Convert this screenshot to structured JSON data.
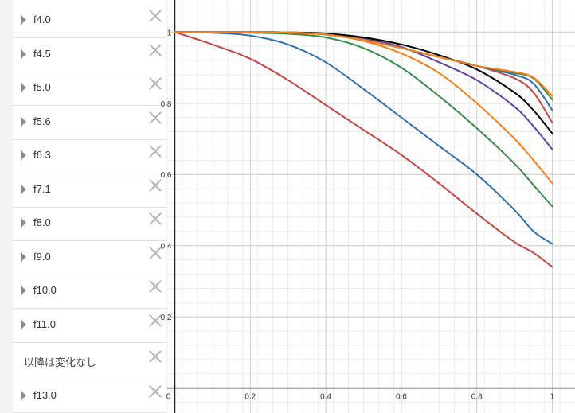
{
  "sidebar": {
    "items": [
      {
        "label": "f4.0",
        "expandable": true
      },
      {
        "label": "f4.5",
        "expandable": true
      },
      {
        "label": "f5.0",
        "expandable": true
      },
      {
        "label": "f5.6",
        "expandable": true
      },
      {
        "label": "f6.3",
        "expandable": true
      },
      {
        "label": "f7.1",
        "expandable": true
      },
      {
        "label": "f8.0",
        "expandable": true
      },
      {
        "label": "f9.0",
        "expandable": true
      },
      {
        "label": "f10.0",
        "expandable": true
      },
      {
        "label": "f11.0",
        "expandable": true
      },
      {
        "label": "以降は変化なし",
        "expandable": false
      },
      {
        "label": "f13.0",
        "expandable": true
      }
    ]
  },
  "chart_data": {
    "type": "line",
    "xlim": [
      -0.02,
      1.06
    ],
    "ylim": [
      -0.07,
      1.09
    ],
    "x_ticks": [
      "0",
      "0.2",
      "0.4",
      "0.6",
      "0.8",
      "1"
    ],
    "y_ticks": [
      "0.2",
      "0.4",
      "0.6",
      "0.8",
      "1"
    ],
    "grid": true,
    "series": [
      {
        "color": "#c74440",
        "x": [
          0,
          0.1,
          0.2,
          0.3,
          0.4,
          0.5,
          0.6,
          0.7,
          0.8,
          0.9,
          0.95,
          1.0
        ],
        "y": [
          1.0,
          0.965,
          0.925,
          0.865,
          0.795,
          0.725,
          0.655,
          0.575,
          0.49,
          0.41,
          0.38,
          0.34
        ]
      },
      {
        "color": "#2d70b3",
        "x": [
          0,
          0.1,
          0.2,
          0.3,
          0.4,
          0.5,
          0.6,
          0.7,
          0.8,
          0.9,
          0.95,
          1.0
        ],
        "y": [
          1.0,
          0.998,
          0.99,
          0.965,
          0.915,
          0.84,
          0.76,
          0.68,
          0.6,
          0.5,
          0.44,
          0.405
        ]
      },
      {
        "color": "#388c46",
        "x": [
          0,
          0.1,
          0.2,
          0.3,
          0.4,
          0.5,
          0.6,
          0.7,
          0.8,
          0.9,
          0.95,
          1.0
        ],
        "y": [
          1.0,
          1.0,
          0.998,
          0.995,
          0.985,
          0.955,
          0.9,
          0.82,
          0.73,
          0.63,
          0.57,
          0.51
        ]
      },
      {
        "color": "#fa7e19",
        "x": [
          0,
          0.1,
          0.2,
          0.3,
          0.4,
          0.5,
          0.6,
          0.7,
          0.8,
          0.9,
          0.95,
          1.0
        ],
        "y": [
          1.0,
          1.0,
          1.0,
          0.998,
          0.993,
          0.975,
          0.94,
          0.885,
          0.8,
          0.7,
          0.64,
          0.575
        ]
      },
      {
        "color": "#6042a6",
        "x": [
          0,
          0.1,
          0.2,
          0.3,
          0.4,
          0.5,
          0.6,
          0.7,
          0.8,
          0.9,
          0.95,
          1.0
        ],
        "y": [
          1.0,
          1.0,
          1.0,
          0.999,
          0.995,
          0.982,
          0.958,
          0.915,
          0.865,
          0.79,
          0.735,
          0.67
        ]
      },
      {
        "color": "#000000",
        "x": [
          0,
          0.1,
          0.2,
          0.3,
          0.4,
          0.5,
          0.6,
          0.7,
          0.8,
          0.9,
          0.95,
          1.0
        ],
        "y": [
          1.0,
          1.0,
          1.0,
          0.999,
          0.996,
          0.985,
          0.965,
          0.935,
          0.895,
          0.83,
          0.78,
          0.715
        ]
      },
      {
        "color": "#c74440",
        "x": [
          0,
          0.1,
          0.2,
          0.3,
          0.4,
          0.5,
          0.6,
          0.7,
          0.8,
          0.9,
          0.95,
          1.0
        ],
        "y": [
          1.0,
          1.0,
          1.0,
          0.999,
          0.993,
          0.978,
          0.955,
          0.93,
          0.905,
          0.87,
          0.83,
          0.745
        ]
      },
      {
        "color": "#2d70b3",
        "x": [
          0,
          0.1,
          0.2,
          0.3,
          0.4,
          0.5,
          0.6,
          0.7,
          0.8,
          0.9,
          0.95,
          1.0
        ],
        "y": [
          1.0,
          1.0,
          1.0,
          0.999,
          0.993,
          0.978,
          0.955,
          0.93,
          0.905,
          0.88,
          0.855,
          0.78
        ]
      },
      {
        "color": "#388c46",
        "x": [
          0,
          0.1,
          0.2,
          0.3,
          0.4,
          0.5,
          0.6,
          0.7,
          0.8,
          0.9,
          0.95,
          1.0
        ],
        "y": [
          1.0,
          1.0,
          1.0,
          0.999,
          0.993,
          0.978,
          0.955,
          0.93,
          0.905,
          0.885,
          0.87,
          0.81
        ]
      },
      {
        "color": "#fa7e19",
        "x": [
          0,
          0.1,
          0.2,
          0.3,
          0.4,
          0.5,
          0.6,
          0.7,
          0.8,
          0.9,
          0.95,
          1.0
        ],
        "y": [
          1.0,
          1.0,
          1.0,
          0.999,
          0.993,
          0.978,
          0.955,
          0.93,
          0.905,
          0.888,
          0.872,
          0.82
        ]
      }
    ]
  }
}
